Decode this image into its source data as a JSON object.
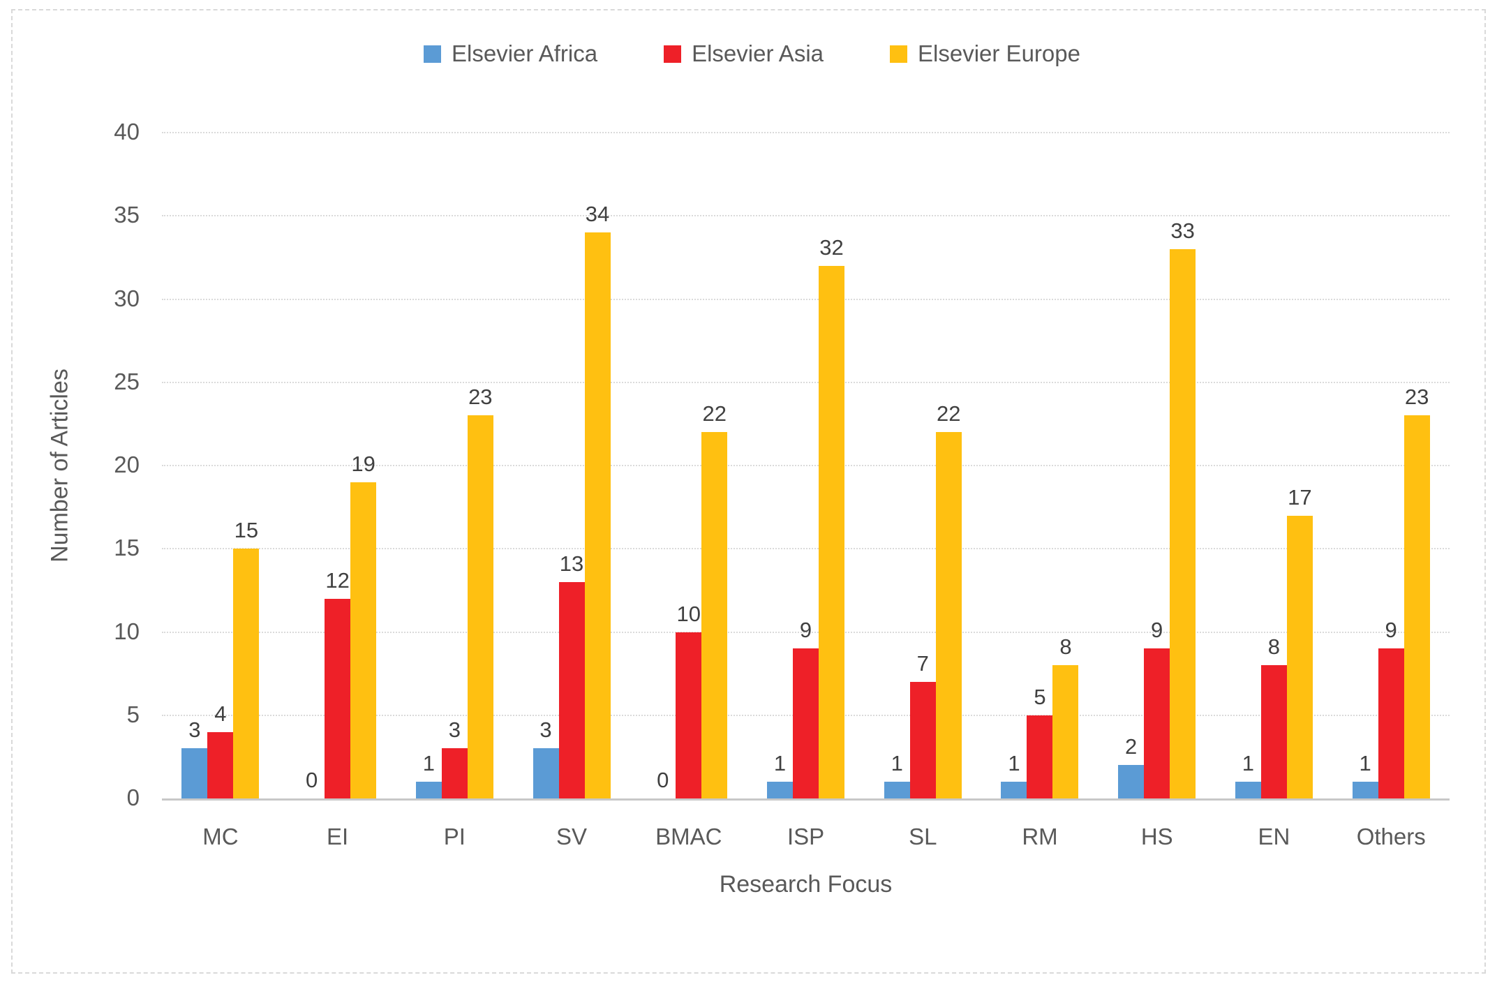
{
  "chart_data": {
    "type": "bar",
    "title": "",
    "xlabel": "Research Focus",
    "ylabel": "Number of Articles",
    "categories": [
      "MC",
      "EI",
      "PI",
      "SV",
      "BMAC",
      "ISP",
      "SL",
      "RM",
      "HS",
      "EN",
      "Others"
    ],
    "series": [
      {
        "name": "Elsevier Africa",
        "color": "#5B9BD5",
        "values": [
          3,
          0,
          1,
          3,
          0,
          1,
          1,
          1,
          2,
          1,
          1
        ]
      },
      {
        "name": "Elsevier Asia",
        "color": "#EE2028",
        "values": [
          4,
          12,
          3,
          13,
          10,
          9,
          7,
          5,
          9,
          8,
          9
        ]
      },
      {
        "name": "Elsevier Europe",
        "color": "#FFC011",
        "values": [
          15,
          19,
          23,
          34,
          22,
          32,
          22,
          8,
          33,
          17,
          23
        ]
      }
    ],
    "ylim": [
      0,
      40
    ],
    "ytick_step": 5,
    "yticks": [
      0,
      5,
      10,
      15,
      20,
      25,
      30,
      35,
      40
    ],
    "grid": true,
    "gridline_style": "dotted",
    "legend_position": "top",
    "data_labels": true,
    "colors": {
      "axis_text": "#595959",
      "data_label_text": "#404040",
      "gridline": "#DADADA",
      "axis_line": "#C8C8C8",
      "frame_border": "#D9D9D9",
      "background": "#FFFFFF"
    }
  }
}
